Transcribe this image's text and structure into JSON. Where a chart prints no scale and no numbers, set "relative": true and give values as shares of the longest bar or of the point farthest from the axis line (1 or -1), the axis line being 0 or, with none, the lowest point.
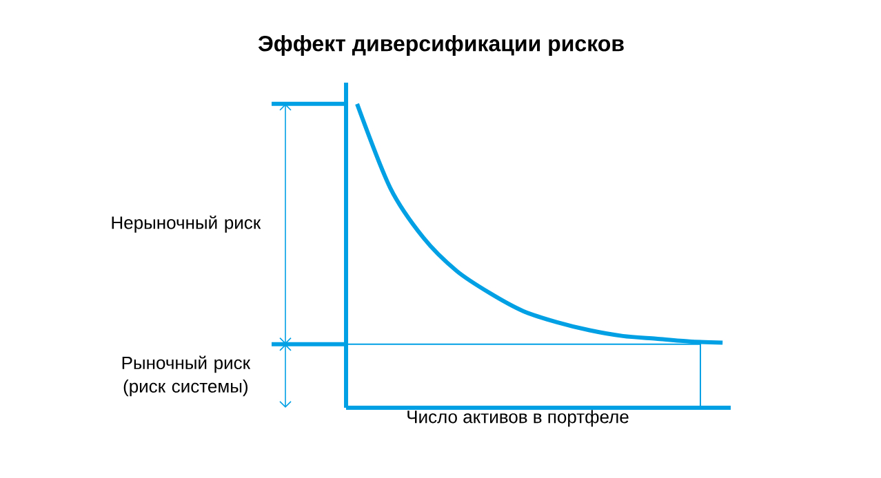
{
  "chart_data": {
    "type": "line",
    "title": "Эффект диверсификации рисков",
    "xlabel": "Число активов в портфеле",
    "relative": true,
    "categories": [
      null,
      null,
      null,
      null,
      null,
      null,
      null,
      null,
      null,
      null,
      null,
      null
    ],
    "series": [
      {
        "color": "#00a0e4",
        "values": [
          1.0,
          0.723,
          0.559,
          0.45,
          0.377,
          0.318,
          0.282,
          0.255,
          0.236,
          0.227,
          0.218,
          0.214
        ]
      }
    ],
    "ref_lines": [
      {
        "axis": "y",
        "value": 0.209,
        "color": "#00a0e4"
      }
    ],
    "annotations": [
      "Нерыночный риск",
      "Рыночный риск (риск системы)"
    ],
    "marker": "none",
    "line_style": "solid"
  }
}
